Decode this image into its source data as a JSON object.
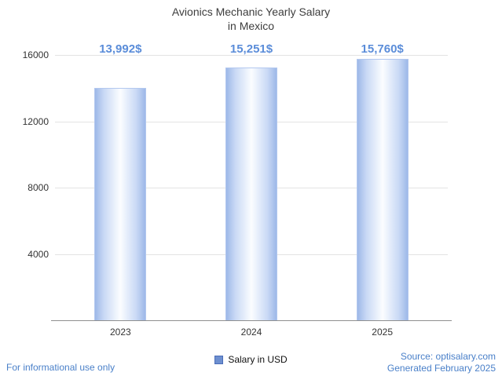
{
  "title": {
    "line1": "Avionics Mechanic Yearly Salary",
    "line2": "in Mexico"
  },
  "chart_data": {
    "type": "bar",
    "title": "Avionics Mechanic Yearly Salary in Mexico",
    "categories": [
      "2023",
      "2024",
      "2025"
    ],
    "values": [
      13992,
      15251,
      15760
    ],
    "value_labels": [
      "13,992$",
      "15,251$",
      "15,760$"
    ],
    "series_name": "Salary in USD",
    "xlabel": "",
    "ylabel": "",
    "ylim": [
      0,
      16000
    ],
    "yticks": [
      4000,
      8000,
      12000,
      16000
    ],
    "grid": true,
    "legend_position": "bottom",
    "colors": {
      "bar_edge": "#9db8e8",
      "bar_center": "#fbfdff",
      "bar_border": "#b3c8ef",
      "value_label": "#5b8dd9",
      "legend_swatch": "#6d8fd0",
      "footer_text": "#4a80c9",
      "title_text": "#3d3d3d",
      "gridline": "#e3e3e3",
      "axis_line": "#8f8f8f"
    }
  },
  "legend": {
    "label": "Salary in USD"
  },
  "footer": {
    "left": "For informational use only",
    "source": "Source: optisalary.com",
    "generated": "Generated February 2025"
  }
}
